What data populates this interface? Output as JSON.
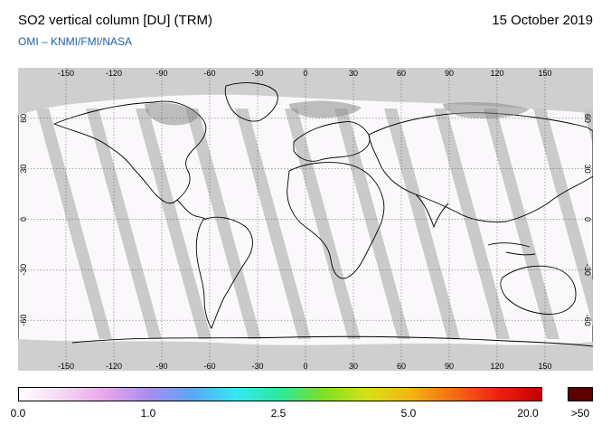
{
  "header": {
    "title": "SO2 vertical column [DU] (TRM)",
    "date": "15 October 2019",
    "credit": "OMI  –  KNMI/FMI/NASA"
  },
  "map": {
    "top_lon_ticks": [
      "-150",
      "-120",
      "-90",
      "-60",
      "-30",
      "0",
      "30",
      "60",
      "90",
      "120",
      "150"
    ],
    "bottom_lon_ticks": [
      "-150",
      "-120",
      "-90",
      "-60",
      "-30",
      "0",
      "30",
      "60",
      "90",
      "120",
      "150"
    ],
    "left_lat_ticks": [
      "60",
      "30",
      "0",
      "-30",
      "-60"
    ],
    "right_lat_ticks": [
      "60",
      "30",
      "0",
      "-30",
      "-60"
    ]
  },
  "colorbar": {
    "labels": [
      "0.0",
      "1.0",
      "2.5",
      "5.0",
      "20.0"
    ],
    "overflow_label": ">50",
    "stops": [
      "#ffffff",
      "#f5d8f3",
      "#e8a6ea",
      "#a88df0",
      "#5aa8f5",
      "#36e8f2",
      "#2ee89a",
      "#7ee024",
      "#d8e01a",
      "#f4b412",
      "#f46a14",
      "#f02010",
      "#c00000"
    ],
    "overflow_color": "#5c0000"
  },
  "colors": {
    "land_gap": "#8c8c8c",
    "orbit_gap": "#c8c8c8",
    "polar_no_data": "#cfcfcf",
    "credit_text": "#1f5fa8"
  }
}
